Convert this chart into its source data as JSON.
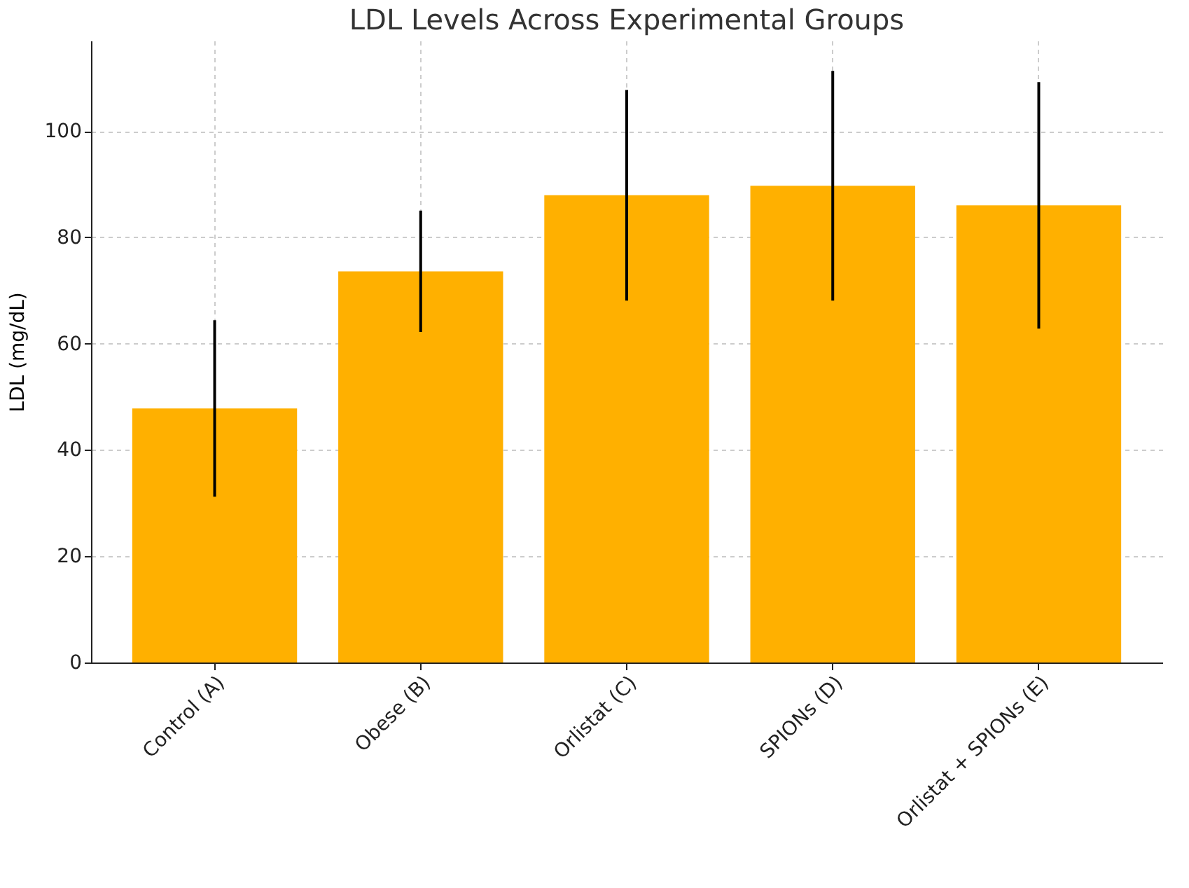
{
  "chart_data": {
    "type": "bar",
    "title": "LDL Levels Across Experimental Groups",
    "ylabel": "LDL (mg/dL)",
    "categories": [
      "Control (A)",
      "Obese (B)",
      "Orlistat (C)",
      "SPIONs (D)",
      "Orlistat + SPIONs (E)"
    ],
    "values": [
      47.8,
      73.6,
      87.9,
      89.7,
      86.0
    ],
    "errors": [
      16.6,
      11.4,
      19.8,
      21.6,
      23.2
    ],
    "color": "#ffb000",
    "ylim": [
      0,
      117
    ],
    "yticks": [
      0,
      20,
      40,
      60,
      80,
      100
    ],
    "grid": true
  }
}
